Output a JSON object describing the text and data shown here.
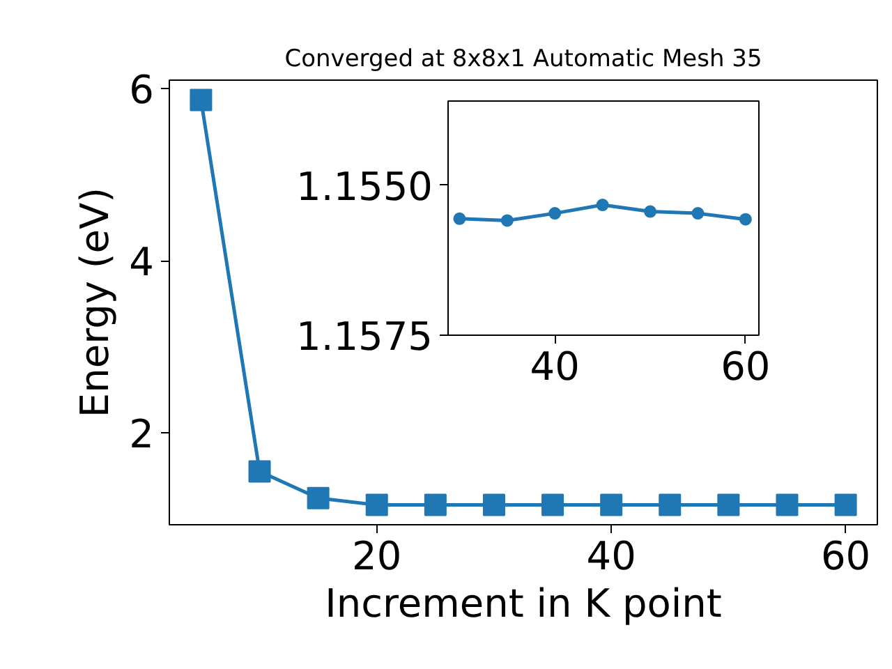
{
  "chart_data": [
    {
      "type": "line",
      "title": "Converged at 8x8x1 Automatic Mesh 35",
      "xlabel": "Increment in K point",
      "ylabel": "Energy (eV)",
      "x": [
        5,
        10,
        15,
        20,
        25,
        30,
        35,
        40,
        45,
        50,
        55,
        60
      ],
      "series": [
        {
          "color": "#1f77b4",
          "values": [
            5.87,
            1.55,
            1.24,
            1.16,
            1.16,
            1.16,
            1.16,
            1.16,
            1.16,
            1.16,
            1.16,
            1.16
          ]
        }
      ],
      "xlim": [
        2.3,
        62.7
      ],
      "ylim": [
        0.93,
        6.1
      ],
      "xticks": [
        20,
        40,
        60
      ],
      "yticks": [
        2,
        4,
        6
      ],
      "marker": "square",
      "line_style": "solid",
      "grid": false
    },
    {
      "type": "line",
      "x": [
        30,
        35,
        40,
        45,
        50,
        55,
        60
      ],
      "series": [
        {
          "color": "#1f77b4",
          "values": [
            1.15556,
            1.15559,
            1.15547,
            1.15533,
            1.15544,
            1.15547,
            1.15557
          ]
        }
      ],
      "xlim": [
        28.8,
        61.4
      ],
      "ylim": [
        1.1575,
        1.1536
      ],
      "xticks": [
        40,
        60
      ],
      "yticks": [
        {
          "value": 1.155,
          "label": "1.1550"
        },
        {
          "value": 1.1575,
          "label": "1.1575"
        }
      ],
      "marker": "circle",
      "line_style": "solid",
      "grid": false
    }
  ]
}
